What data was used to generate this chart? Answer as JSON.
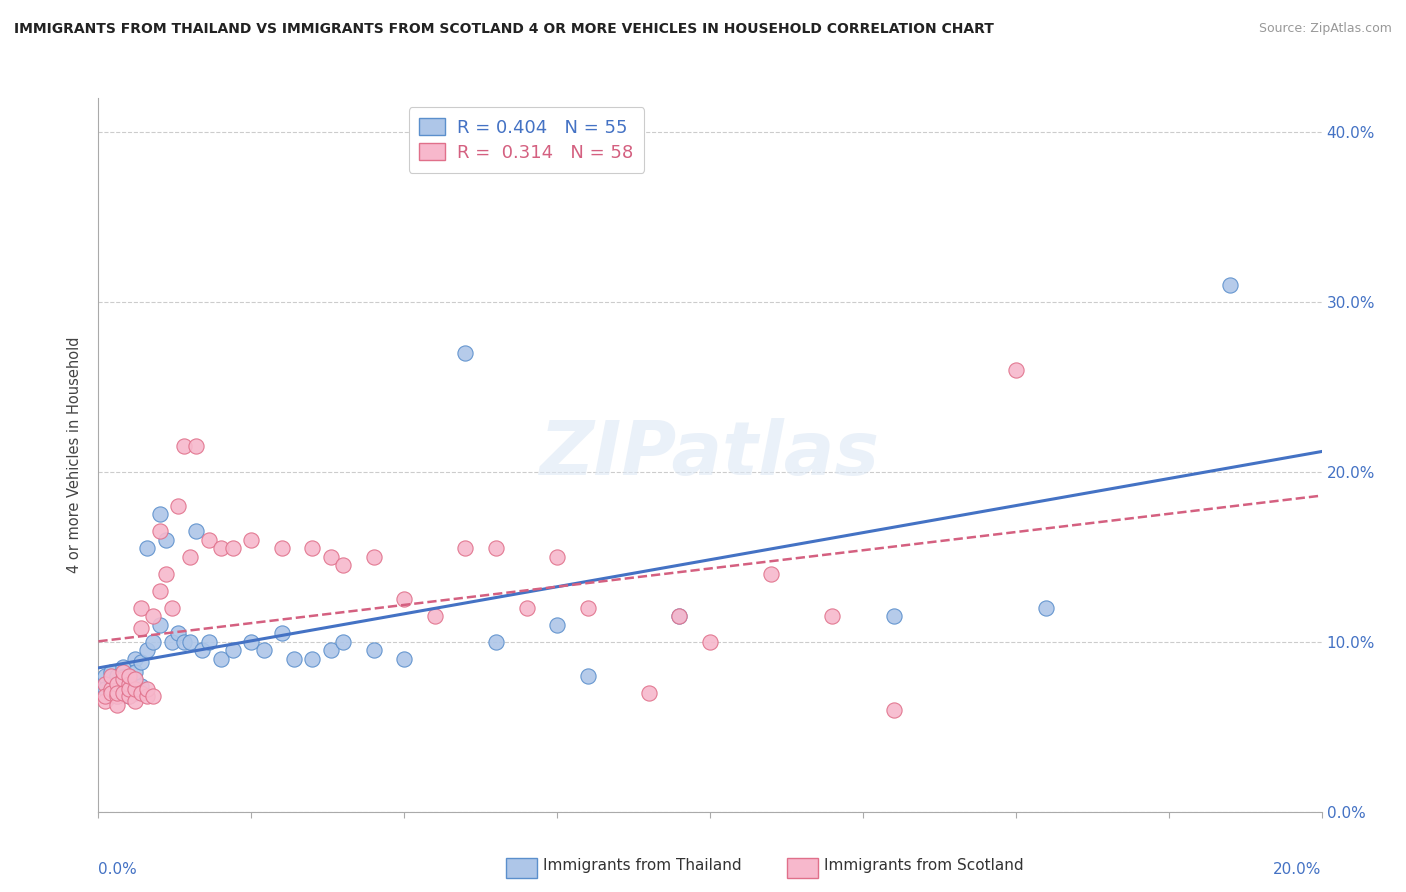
{
  "title": "IMMIGRANTS FROM THAILAND VS IMMIGRANTS FROM SCOTLAND 4 OR MORE VEHICLES IN HOUSEHOLD CORRELATION CHART",
  "source": "Source: ZipAtlas.com",
  "ylabel": "4 or more Vehicles in Household",
  "xlim": [
    0.0,
    0.2
  ],
  "ylim": [
    0.0,
    0.42
  ],
  "y_ticks": [
    0.0,
    0.1,
    0.2,
    0.3,
    0.4
  ],
  "x_ticks": [
    0.0,
    0.025,
    0.05,
    0.075,
    0.1,
    0.125,
    0.15,
    0.175,
    0.2
  ],
  "R_thailand": 0.404,
  "N_thailand": 55,
  "R_scotland": 0.314,
  "N_scotland": 58,
  "color_thailand_fill": "#aec6e8",
  "color_thailand_edge": "#5b8fcc",
  "color_scotland_fill": "#f7b8cc",
  "color_scotland_edge": "#e0708a",
  "line_color_thailand": "#4472c4",
  "line_color_scotland": "#d46080",
  "axis_tick_color": "#4472c4",
  "background_color": "#ffffff",
  "grid_color": "#cccccc",
  "thailand_x": [
    0.001,
    0.001,
    0.001,
    0.002,
    0.002,
    0.002,
    0.002,
    0.003,
    0.003,
    0.003,
    0.003,
    0.004,
    0.004,
    0.004,
    0.005,
    0.005,
    0.005,
    0.005,
    0.006,
    0.006,
    0.006,
    0.007,
    0.007,
    0.008,
    0.008,
    0.009,
    0.01,
    0.01,
    0.011,
    0.012,
    0.013,
    0.014,
    0.015,
    0.016,
    0.017,
    0.018,
    0.02,
    0.022,
    0.025,
    0.027,
    0.03,
    0.032,
    0.035,
    0.038,
    0.04,
    0.045,
    0.05,
    0.06,
    0.065,
    0.075,
    0.08,
    0.095,
    0.13,
    0.155,
    0.185
  ],
  "thailand_y": [
    0.075,
    0.08,
    0.072,
    0.078,
    0.082,
    0.07,
    0.068,
    0.076,
    0.072,
    0.08,
    0.068,
    0.085,
    0.079,
    0.074,
    0.08,
    0.075,
    0.068,
    0.073,
    0.09,
    0.082,
    0.07,
    0.088,
    0.074,
    0.095,
    0.155,
    0.1,
    0.175,
    0.11,
    0.16,
    0.1,
    0.105,
    0.1,
    0.1,
    0.165,
    0.095,
    0.1,
    0.09,
    0.095,
    0.1,
    0.095,
    0.105,
    0.09,
    0.09,
    0.095,
    0.1,
    0.095,
    0.09,
    0.27,
    0.1,
    0.11,
    0.08,
    0.115,
    0.115,
    0.12,
    0.31
  ],
  "scotland_x": [
    0.001,
    0.001,
    0.001,
    0.002,
    0.002,
    0.002,
    0.003,
    0.003,
    0.003,
    0.003,
    0.004,
    0.004,
    0.004,
    0.005,
    0.005,
    0.005,
    0.005,
    0.006,
    0.006,
    0.006,
    0.007,
    0.007,
    0.007,
    0.008,
    0.008,
    0.009,
    0.009,
    0.01,
    0.01,
    0.011,
    0.012,
    0.013,
    0.014,
    0.015,
    0.016,
    0.018,
    0.02,
    0.022,
    0.025,
    0.03,
    0.035,
    0.038,
    0.04,
    0.045,
    0.05,
    0.055,
    0.06,
    0.065,
    0.07,
    0.075,
    0.08,
    0.09,
    0.095,
    0.1,
    0.11,
    0.12,
    0.13,
    0.15
  ],
  "scotland_y": [
    0.065,
    0.075,
    0.068,
    0.072,
    0.08,
    0.07,
    0.068,
    0.075,
    0.063,
    0.07,
    0.078,
    0.082,
    0.07,
    0.068,
    0.075,
    0.072,
    0.08,
    0.065,
    0.072,
    0.078,
    0.12,
    0.108,
    0.07,
    0.068,
    0.072,
    0.115,
    0.068,
    0.13,
    0.165,
    0.14,
    0.12,
    0.18,
    0.215,
    0.15,
    0.215,
    0.16,
    0.155,
    0.155,
    0.16,
    0.155,
    0.155,
    0.15,
    0.145,
    0.15,
    0.125,
    0.115,
    0.155,
    0.155,
    0.12,
    0.15,
    0.12,
    0.07,
    0.115,
    0.1,
    0.14,
    0.115,
    0.06,
    0.26
  ]
}
